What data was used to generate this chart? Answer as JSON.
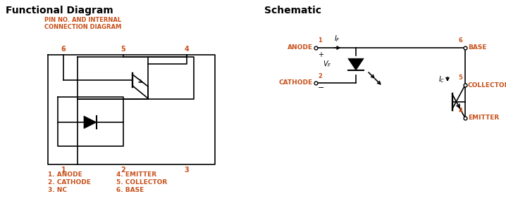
{
  "title_left": "Functional Diagram",
  "title_right": "Schematic",
  "subtitle": "PIN NO. AND INTERNAL\nCONNECTION DIAGRAM",
  "text_color": "#c8501a",
  "line_color": "#000000",
  "bg_color": "#ffffff",
  "legend": [
    [
      "1. ANODE",
      "4. EMITTER"
    ],
    [
      "2. CATHODE",
      "5. COLLECTOR"
    ],
    [
      "3. NC",
      "6. BASE"
    ]
  ]
}
